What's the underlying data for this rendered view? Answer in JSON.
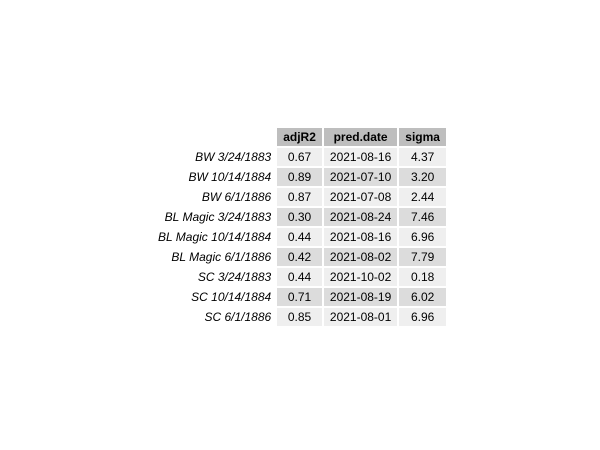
{
  "chart_data": {
    "type": "table",
    "columns": [
      "adjR2",
      "pred.date",
      "sigma"
    ],
    "rows": [
      {
        "name": "BW 3/24/1883",
        "adjR2": "0.67",
        "pred_date": "2021-08-16",
        "sigma": "4.37"
      },
      {
        "name": "BW 10/14/1884",
        "adjR2": "0.89",
        "pred_date": "2021-07-10",
        "sigma": "3.20"
      },
      {
        "name": "BW 6/1/1886",
        "adjR2": "0.87",
        "pred_date": "2021-07-08",
        "sigma": "2.44"
      },
      {
        "name": "BL Magic 3/24/1883",
        "adjR2": "0.30",
        "pred_date": "2021-08-24",
        "sigma": "7.46"
      },
      {
        "name": "BL Magic 10/14/1884",
        "adjR2": "0.44",
        "pred_date": "2021-08-16",
        "sigma": "6.96"
      },
      {
        "name": "BL Magic 6/1/1886",
        "adjR2": "0.42",
        "pred_date": "2021-08-02",
        "sigma": "7.79"
      },
      {
        "name": "SC 3/24/1883",
        "adjR2": "0.44",
        "pred_date": "2021-10-02",
        "sigma": "0.18"
      },
      {
        "name": "SC 10/14/1884",
        "adjR2": "0.71",
        "pred_date": "2021-08-19",
        "sigma": "6.02"
      },
      {
        "name": "SC 6/1/1886",
        "adjR2": "0.85",
        "pred_date": "2021-08-01",
        "sigma": "6.96"
      }
    ],
    "colors": {
      "header_fill": "#bebebe",
      "row_fill_light": "#efefef",
      "row_fill_dark": "#dcdcdc"
    }
  }
}
